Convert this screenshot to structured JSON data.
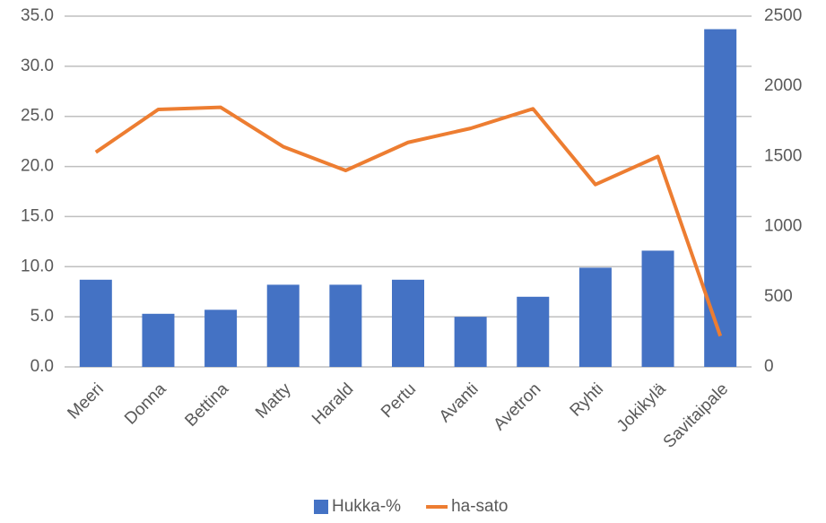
{
  "chart_data": {
    "type": "bar_line",
    "categories": [
      "Meeri",
      "Donna",
      "Bettina",
      "Matty",
      "Harald",
      "Pertu",
      "Avanti",
      "Avetron",
      "Ryhti",
      "Jokikylä",
      "Savitaipale"
    ],
    "series": [
      {
        "name": "Hukka-%",
        "type": "bar",
        "color": "#4472c4",
        "values": [
          8.7,
          5.3,
          5.7,
          8.2,
          8.2,
          8.7,
          5.0,
          7.0,
          9.9,
          11.6,
          33.7
        ]
      },
      {
        "name": "ha-sato",
        "type": "line",
        "axis": "y2",
        "color": "#ed7d31",
        "values": [
          1530,
          1835,
          1850,
          1570,
          1400,
          1600,
          1700,
          1840,
          1300,
          1500,
          220
        ]
      }
    ],
    "ylim": [
      0,
      35
    ],
    "yticks": [
      {
        "value": 0,
        "label": "0.0"
      },
      {
        "value": 5,
        "label": "5.0"
      },
      {
        "value": 10,
        "label": "10.0"
      },
      {
        "value": 15,
        "label": "15.0"
      },
      {
        "value": 20,
        "label": "20.0"
      },
      {
        "value": 25,
        "label": "25.0"
      },
      {
        "value": 30,
        "label": "30.0"
      },
      {
        "value": 35,
        "label": "35.0"
      }
    ],
    "y2lim": [
      0,
      2500
    ],
    "y2ticks": [
      0,
      500,
      1000,
      1500,
      2000,
      2500
    ],
    "grid": true,
    "legend": "bottom"
  }
}
